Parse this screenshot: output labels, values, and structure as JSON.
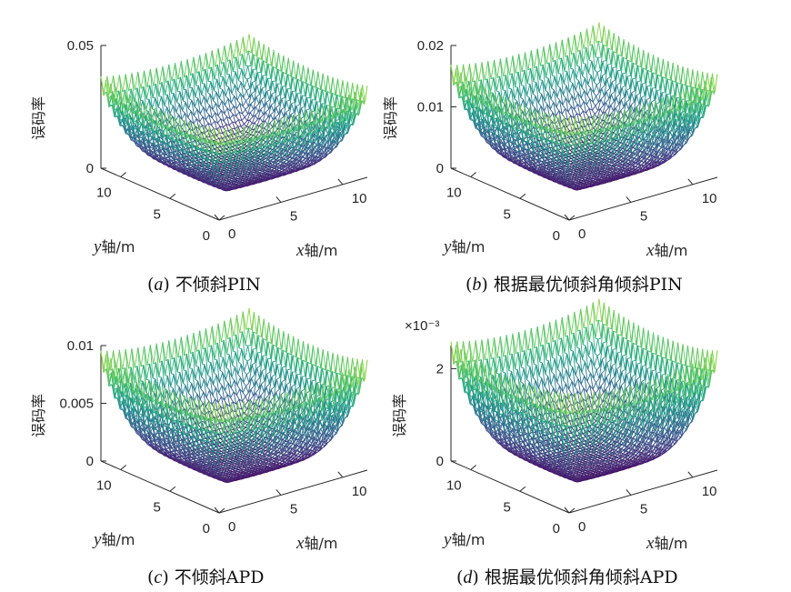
{
  "chart_data": [
    {
      "type": "surface",
      "panel": "(a)",
      "caption_letter": "a",
      "caption_text": "不倾斜PIN",
      "zlabel": "误码率",
      "xlabel_var": "x",
      "xlabel_rest": "轴/m",
      "ylabel_var": "y",
      "ylabel_rest": "轴/m",
      "z_ticks": [
        "0",
        "0.05"
      ],
      "z_exponent": "",
      "x_ticks": [
        "0",
        "5",
        "10"
      ],
      "y_ticks": [
        "0",
        "5",
        "10"
      ],
      "x_range": [
        0,
        12
      ],
      "y_range": [
        0,
        12
      ],
      "z_range": [
        0,
        0.05
      ],
      "z_min": 0.0,
      "z_peak_edge": 0.041,
      "z_trough_edge": 0.034,
      "colormap": "viridis"
    },
    {
      "type": "surface",
      "panel": "(b)",
      "caption_letter": "b",
      "caption_text": "根据最优倾斜角倾斜PIN",
      "zlabel": "误码率",
      "xlabel_var": "x",
      "xlabel_rest": "轴/m",
      "ylabel_var": "y",
      "ylabel_rest": "轴/m",
      "z_ticks": [
        "0",
        "0.01",
        "0.02"
      ],
      "z_exponent": "",
      "x_ticks": [
        "0",
        "5",
        "10"
      ],
      "y_ticks": [
        "0",
        "5",
        "10"
      ],
      "x_range": [
        0,
        12
      ],
      "y_range": [
        0,
        12
      ],
      "z_range": [
        0,
        0.02
      ],
      "z_min": 0.0,
      "z_peak_edge": 0.0185,
      "z_trough_edge": 0.0155,
      "colormap": "viridis"
    },
    {
      "type": "surface",
      "panel": "(c)",
      "caption_letter": "c",
      "caption_text": "不倾斜APD",
      "zlabel": "误码率",
      "xlabel_var": "x",
      "xlabel_rest": "轴/m",
      "ylabel_var": "y",
      "ylabel_rest": "轴/m",
      "z_ticks": [
        "0",
        "0.005",
        "0.01"
      ],
      "z_exponent": "",
      "x_ticks": [
        "0",
        "5",
        "10"
      ],
      "y_ticks": [
        "0",
        "5",
        "10"
      ],
      "x_range": [
        0,
        12
      ],
      "y_range": [
        0,
        12
      ],
      "z_range": [
        0,
        0.01
      ],
      "z_min": 0.0,
      "z_peak_edge": 0.0105,
      "z_trough_edge": 0.0088,
      "colormap": "viridis"
    },
    {
      "type": "surface",
      "panel": "(d)",
      "caption_letter": "d",
      "caption_text": "根据最优倾斜角倾斜APD",
      "zlabel": "误码率",
      "xlabel_var": "x",
      "xlabel_rest": "轴/m",
      "ylabel_var": "y",
      "ylabel_rest": "轴/m",
      "z_ticks": [
        "0",
        "2"
      ],
      "z_exponent": "×10⁻³",
      "x_ticks": [
        "0",
        "5",
        "10"
      ],
      "y_ticks": [
        "0",
        "5",
        "10"
      ],
      "x_range": [
        0,
        12
      ],
      "y_range": [
        0,
        12
      ],
      "z_range": [
        0,
        0.0025
      ],
      "z_min": 0.0,
      "z_peak_edge": 0.00285,
      "z_trough_edge": 0.0024,
      "colormap": "viridis"
    }
  ]
}
